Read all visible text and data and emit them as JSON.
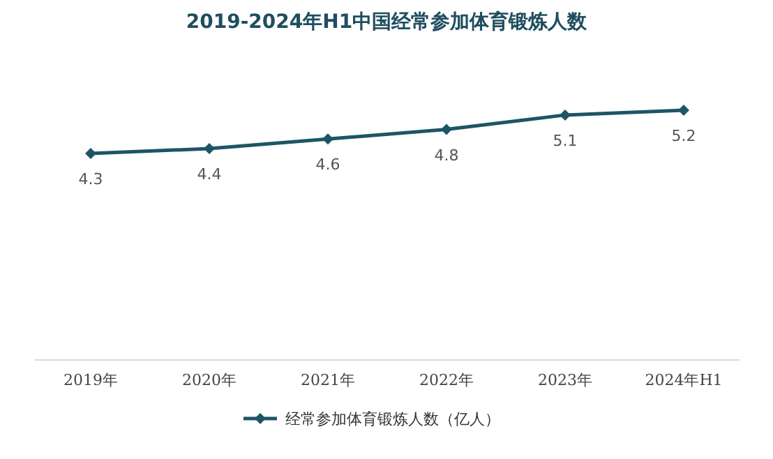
{
  "chart_data": {
    "type": "line",
    "title": "2019-2024年H1中国经常参加体育锻炼人数",
    "categories": [
      "2019年",
      "2020年",
      "2021年",
      "2022年",
      "2023年",
      "2024年H1"
    ],
    "series": [
      {
        "name": "经常参加体育锻炼人数（亿人）",
        "color": "#1d5566",
        "values": [
          4.3,
          4.4,
          4.6,
          4.8,
          5.1,
          5.2
        ]
      }
    ],
    "data_labels": true,
    "marker": "diamond",
    "line_style": "solid",
    "legend": "bottom"
  }
}
